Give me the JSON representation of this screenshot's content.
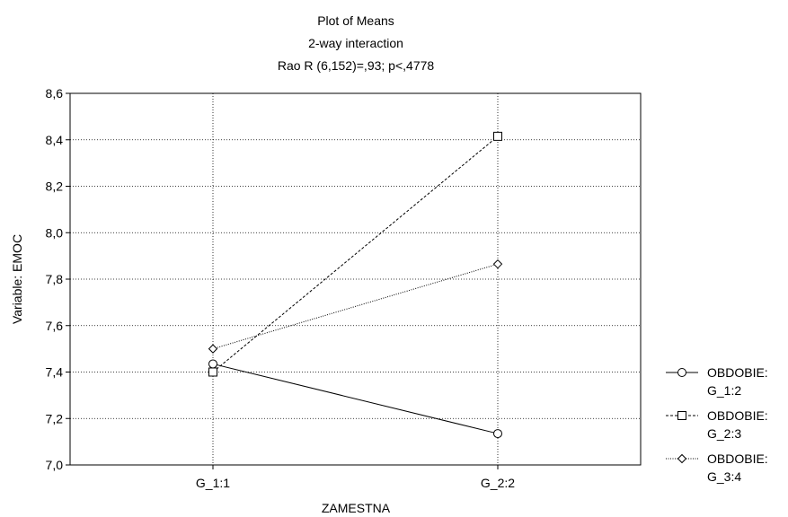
{
  "chart_data": {
    "type": "line",
    "title": "Plot of Means",
    "subtitle": "2-way interaction",
    "subtitle2": "Rao R (6,152)=,93; p<,4778",
    "xlabel": "ZAMESTNA",
    "ylabel": "Variable: EMOC",
    "categories": [
      "G_1:1",
      "G_2:2"
    ],
    "ylim": [
      7.0,
      8.6
    ],
    "yticks": [
      7.0,
      7.2,
      7.4,
      7.6,
      7.8,
      8.0,
      8.2,
      8.4,
      8.6
    ],
    "ytick_labels": [
      "7,0",
      "7,2",
      "7,4",
      "7,6",
      "7,8",
      "8,0",
      "8,2",
      "8,4",
      "8,6"
    ],
    "grid": true,
    "legend_position": "right",
    "series": [
      {
        "name_line1": "OBDOBIE:",
        "name_line2": "G_1:2",
        "values": [
          7.435,
          7.135
        ],
        "marker": "circle",
        "line_style": "solid",
        "color": "#000000"
      },
      {
        "name_line1": "OBDOBIE:",
        "name_line2": "G_2:3",
        "values": [
          7.4,
          8.415
        ],
        "marker": "square",
        "line_style": "dashed",
        "color": "#000000"
      },
      {
        "name_line1": "OBDOBIE:",
        "name_line2": "G_3:4",
        "values": [
          7.5,
          7.865
        ],
        "marker": "diamond",
        "line_style": "dotted",
        "color": "#000000"
      }
    ]
  }
}
